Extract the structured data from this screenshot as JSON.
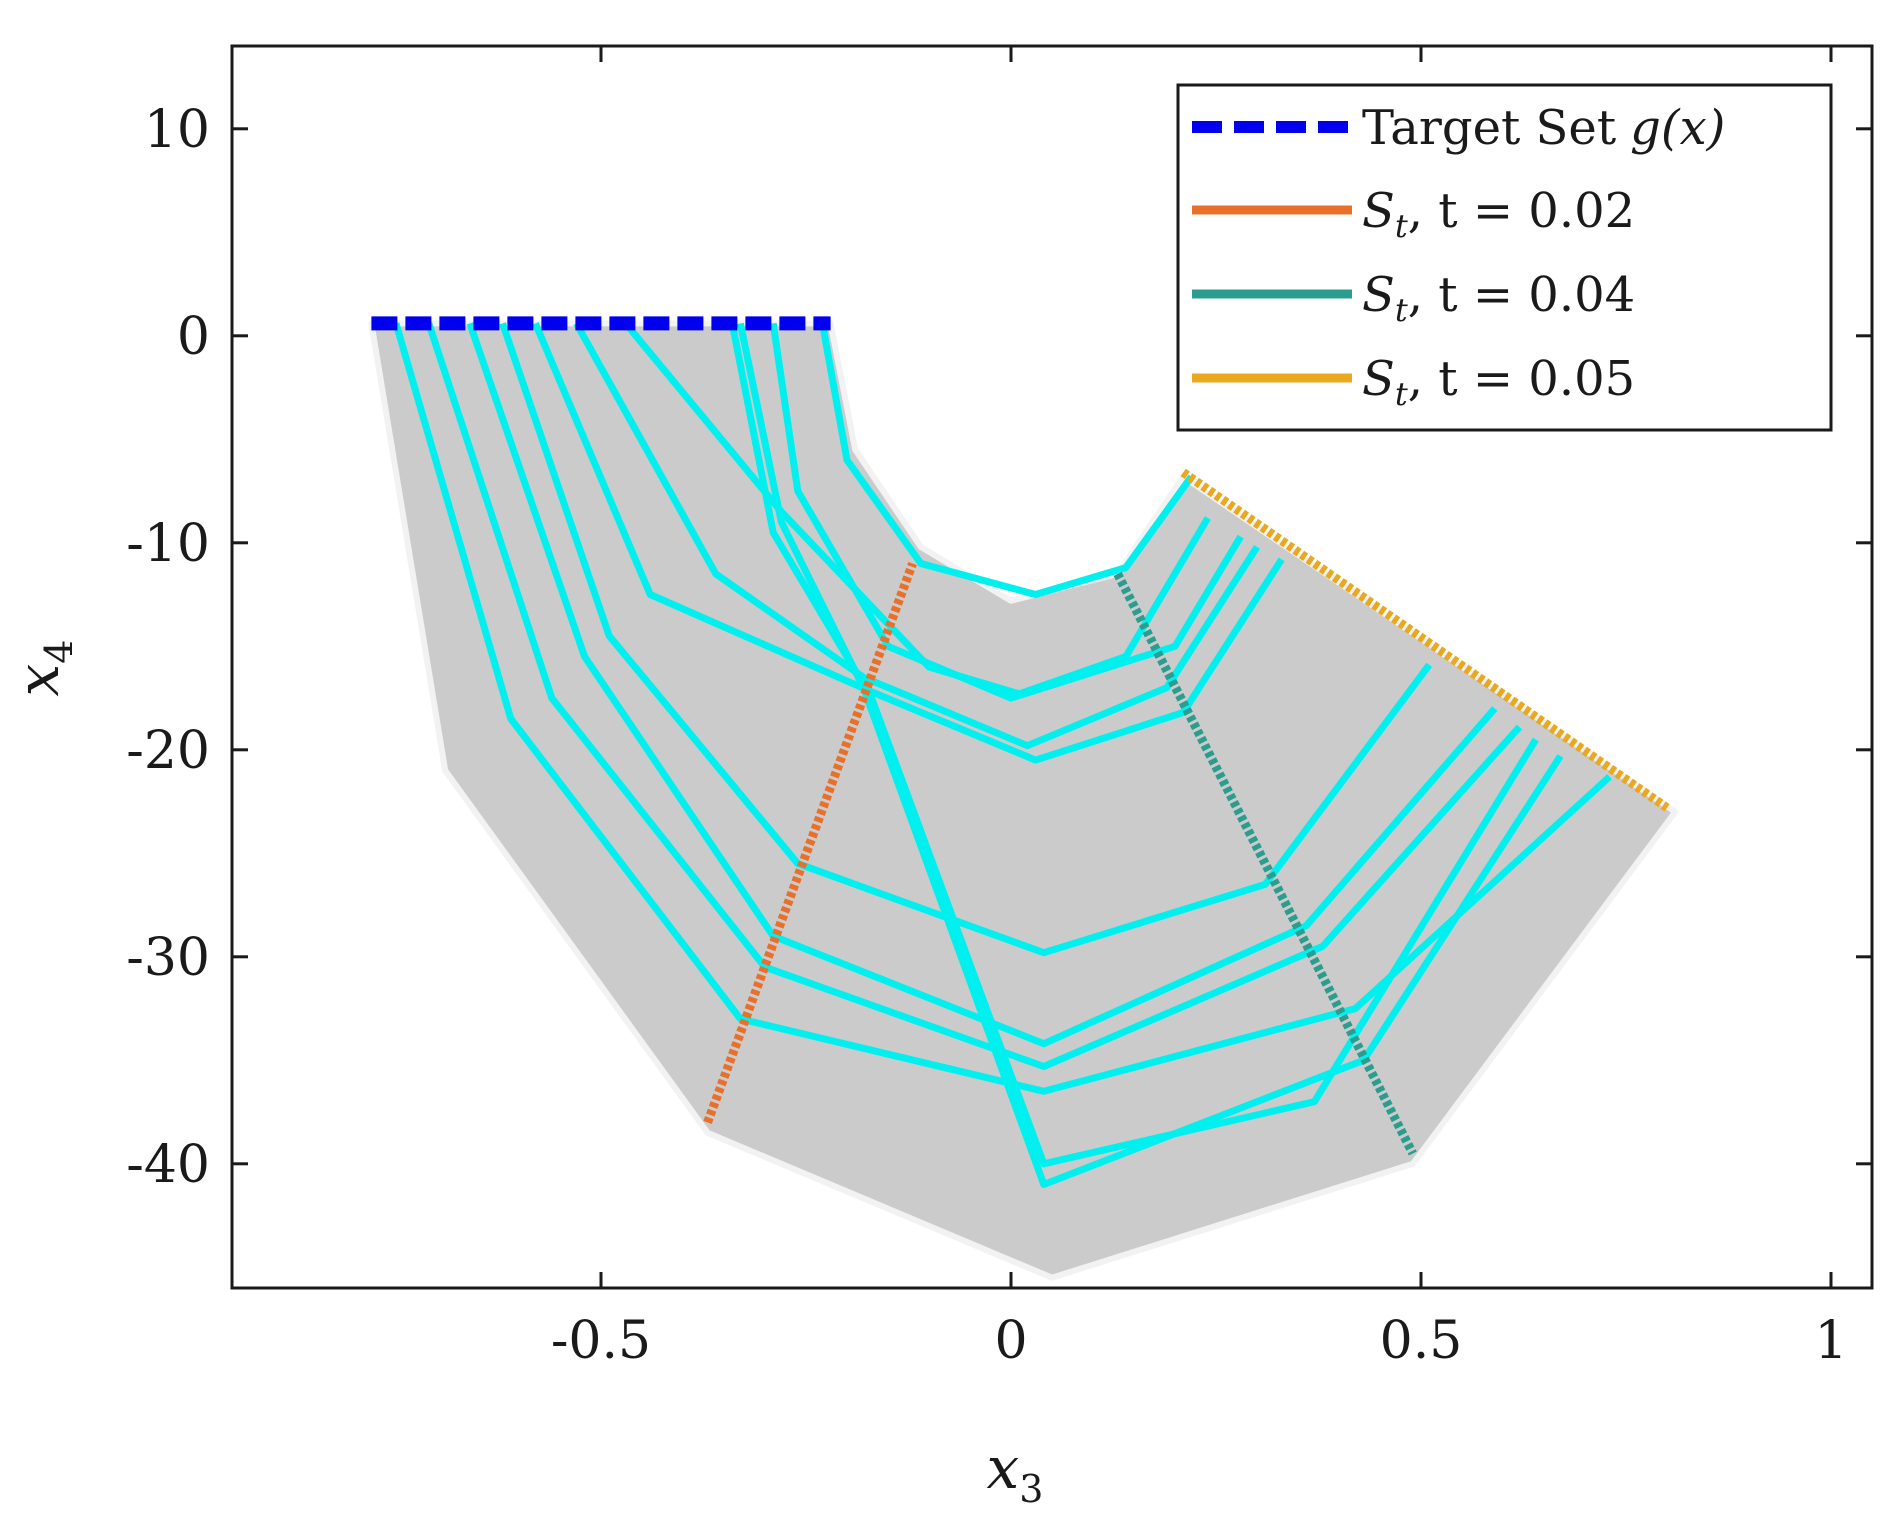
{
  "chart_data": {
    "type": "line",
    "title": "",
    "xlabel": "x",
    "xlabel_sub": "3",
    "ylabel": "x",
    "ylabel_sub": "4",
    "xlim": [
      -0.95,
      1.05
    ],
    "ylim": [
      -46,
      14
    ],
    "xticks": [
      -0.5,
      0,
      0.5,
      1
    ],
    "xtick_labels": [
      "-0.5",
      "0",
      "0.5",
      "1"
    ],
    "yticks": [
      10,
      0,
      -10,
      -20,
      -30,
      -40
    ],
    "ytick_labels": [
      "10",
      "0",
      "-10",
      "-20",
      "-30",
      "-40"
    ],
    "legend_position": "top-right",
    "colors": {
      "target": "#0000ee",
      "s002": "#e8702a",
      "s004": "#2a9d8f",
      "s005": "#e9a820",
      "trajectory": "#00f0f0",
      "region": "#cbcbcb",
      "region_edge": "#f2f2f2"
    },
    "region": [
      [
        -0.78,
        0.6
      ],
      [
        -0.69,
        -21
      ],
      [
        -0.37,
        -38.5
      ],
      [
        0.05,
        -45.5
      ],
      [
        0.49,
        -40
      ],
      [
        0.81,
        -23
      ],
      [
        0.21,
        -6.8
      ],
      [
        0.13,
        -11.5
      ],
      [
        0.0,
        -12.8
      ],
      [
        -0.11,
        -10.2
      ],
      [
        -0.19,
        -5.5
      ],
      [
        -0.22,
        0.6
      ]
    ],
    "series": [
      {
        "name": "Target Set g(x)",
        "legend_label": "Target Set",
        "legend_math": "g(x)",
        "style": "dashed",
        "x": [
          -0.78,
          -0.22
        ],
        "y": [
          0.6,
          0.6
        ]
      },
      {
        "name": "S_t, t = 0.02",
        "legend_label": "S",
        "legend_sub": "t",
        "legend_tail": ", t = 0.02",
        "style": "dotted",
        "x": [
          -0.37,
          -0.12
        ],
        "y": [
          -38,
          -11
        ]
      },
      {
        "name": "S_t, t = 0.04",
        "legend_label": "S",
        "legend_sub": "t",
        "legend_tail": ", t = 0.04",
        "style": "dotted",
        "x": [
          0.13,
          0.49
        ],
        "y": [
          -11.5,
          -39.5
        ]
      },
      {
        "name": "S_t, t = 0.05",
        "legend_label": "S",
        "legend_sub": "t",
        "legend_tail": ", t = 0.05",
        "style": "dotted",
        "x": [
          0.21,
          0.8
        ],
        "y": [
          -6.6,
          -22.8
        ]
      }
    ],
    "trajectories": [
      {
        "x": [
          -0.75,
          -0.61,
          -0.33,
          0.04,
          0.42,
          0.73
        ],
        "y": [
          0.6,
          -18.5,
          -33,
          -36.5,
          -32.5,
          -21.3
        ]
      },
      {
        "x": [
          -0.71,
          -0.56,
          -0.3,
          0.04,
          0.38,
          0.62
        ],
        "y": [
          0.6,
          -17.5,
          -30.5,
          -35.3,
          -29.5,
          -18.9
        ]
      },
      {
        "x": [
          -0.66,
          -0.52,
          -0.29,
          0.04,
          0.36,
          0.59
        ],
        "y": [
          0.6,
          -15.5,
          -29,
          -34.2,
          -28.5,
          -18.0
        ]
      },
      {
        "x": [
          -0.62,
          -0.49,
          -0.26,
          0.04,
          0.31,
          0.51
        ],
        "y": [
          0.6,
          -14.5,
          -25.5,
          -29.8,
          -26.5,
          -15.9
        ]
      },
      {
        "x": [
          -0.58,
          -0.44,
          -0.17,
          0.03,
          0.21,
          0.33
        ],
        "y": [
          0.6,
          -12.5,
          -17.2,
          -20.5,
          -18.2,
          -10.8
        ]
      },
      {
        "x": [
          -0.53,
          -0.36,
          -0.18,
          0.02,
          0.19,
          0.3
        ],
        "y": [
          0.6,
          -11.5,
          -16.5,
          -19.8,
          -17.0,
          -10.2
        ]
      },
      {
        "x": [
          -0.47,
          -0.28,
          -0.1,
          0.01,
          0.14,
          0.24
        ],
        "y": [
          0.6,
          -8.5,
          -16.0,
          -17.3,
          -15.5,
          -8.8
        ]
      },
      {
        "x": [
          -0.34,
          -0.29,
          -0.17,
          0.04,
          0.37,
          0.64
        ],
        "y": [
          0.6,
          -9.5,
          -17.5,
          -40.0,
          -37.0,
          -19.5
        ]
      },
      {
        "x": [
          -0.33,
          -0.28,
          -0.18,
          0.04,
          0.43,
          0.67
        ],
        "y": [
          0.6,
          -9.0,
          -17.0,
          -41.0,
          -35.0,
          -20.3
        ]
      },
      {
        "x": [
          -0.29,
          -0.26,
          -0.15,
          0.0,
          0.2,
          0.28
        ],
        "y": [
          0.6,
          -7.5,
          -15.0,
          -17.5,
          -15.0,
          -9.7
        ]
      },
      {
        "x": [
          -0.23,
          -0.2,
          -0.11,
          0.03,
          0.14,
          0.22
        ],
        "y": [
          0.6,
          -6.0,
          -11.0,
          -12.5,
          -11.2,
          -6.8
        ]
      }
    ]
  }
}
